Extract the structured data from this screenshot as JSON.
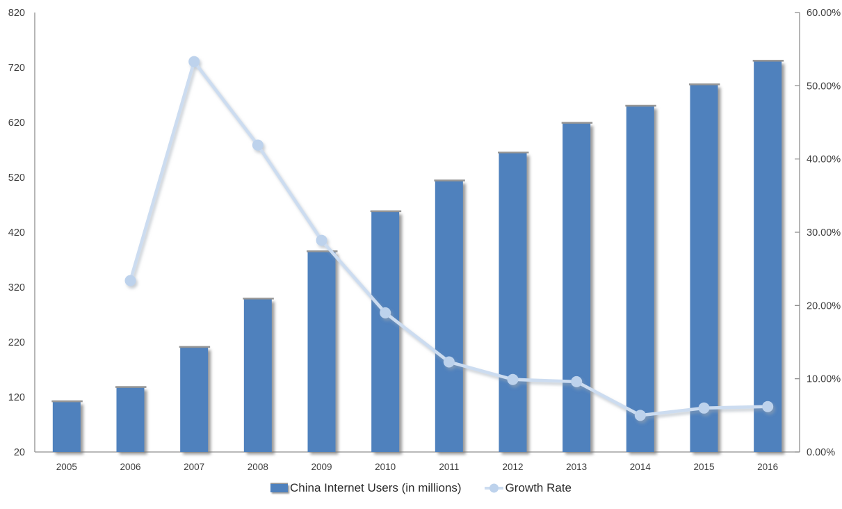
{
  "chart_data": {
    "type": "combo",
    "title": "",
    "categories": [
      "2005",
      "2006",
      "2007",
      "2008",
      "2009",
      "2010",
      "2011",
      "2012",
      "2013",
      "2014",
      "2015",
      "2016"
    ],
    "series": [
      {
        "name": "China Internet Users (in millions)",
        "type": "bar",
        "axis": "left",
        "color": "#4f81bd",
        "values": [
          111,
          137,
          210,
          298,
          384,
          457,
          513,
          564,
          618,
          649,
          688,
          731
        ]
      },
      {
        "name": "Growth Rate",
        "type": "line",
        "axis": "right",
        "color": "#ccdcf0",
        "marker_color": "#bdd2ec",
        "unit": "%",
        "values": [
          null,
          23.4,
          53.3,
          41.9,
          28.9,
          19.0,
          12.3,
          9.9,
          9.6,
          5.0,
          6.0,
          6.2
        ]
      }
    ],
    "left_axis": {
      "min": 20,
      "max": 820,
      "ticks": [
        "20",
        "120",
        "220",
        "320",
        "420",
        "520",
        "620",
        "720",
        "820"
      ]
    },
    "right_axis": {
      "min": 0,
      "max": 60,
      "ticks": [
        "0.00%",
        "10.00%",
        "20.00%",
        "30.00%",
        "40.00%",
        "50.00%",
        "60.00%"
      ]
    },
    "grid": false,
    "legend_position": "bottom",
    "background": "#ffffff",
    "axis_color": "#8f8f8f",
    "label_color": "#3c3c3c"
  }
}
